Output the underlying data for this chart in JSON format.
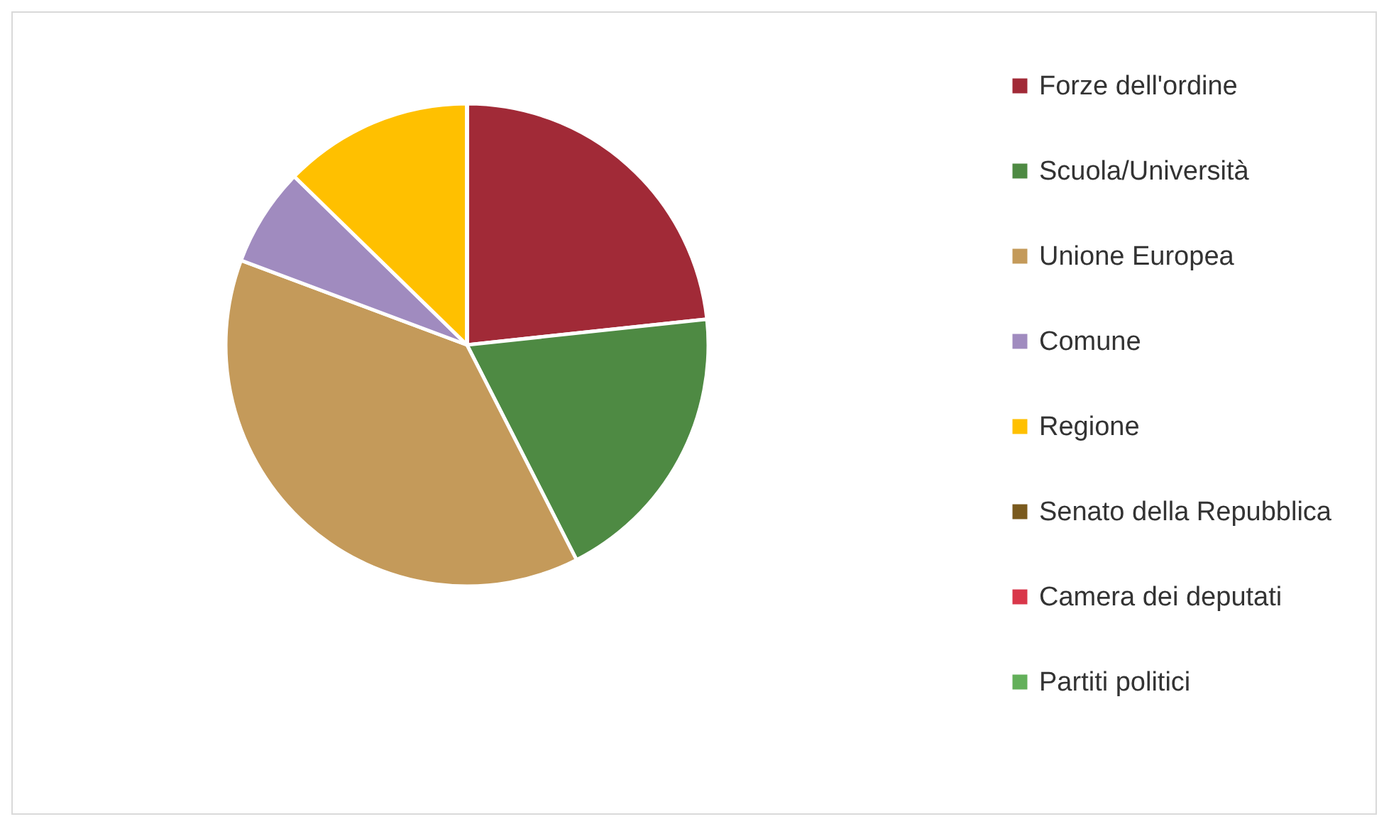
{
  "chart_data": {
    "type": "pie",
    "categories": [
      "Forze dell'ordine",
      "Scuola/Università",
      "Unione Europea",
      "Comune",
      "Regione",
      "Senato della Repubblica",
      "Camera dei deputati",
      "Partiti politici"
    ],
    "values": [
      23.3,
      19.2,
      38.2,
      6.6,
      12.7,
      0,
      0,
      0
    ],
    "colors": [
      "#a12a37",
      "#4e8a43",
      "#c49a5a",
      "#a08bbf",
      "#ffc000",
      "#7a5a1e",
      "#d9374a",
      "#63b05a"
    ],
    "legend": "right"
  }
}
